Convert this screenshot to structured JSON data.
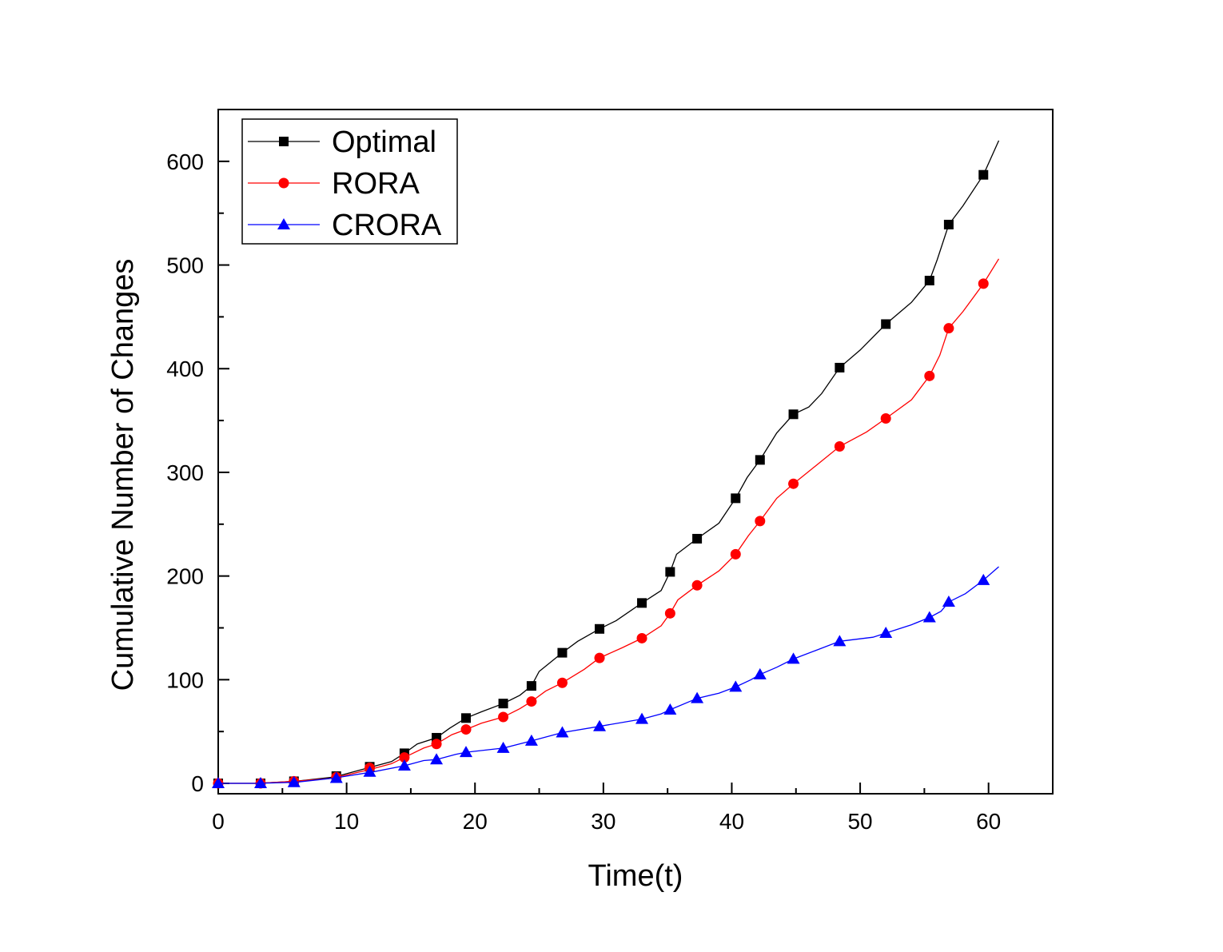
{
  "chart_data": {
    "type": "line",
    "xlabel": "Time(t)",
    "ylabel": "Cumulative Number of Changes",
    "xlim": [
      0,
      65
    ],
    "ylim": [
      -10,
      650
    ],
    "xticks": [
      0,
      10,
      20,
      30,
      40,
      50,
      60
    ],
    "yticks": [
      0,
      100,
      200,
      300,
      400,
      500,
      600
    ],
    "grid": false,
    "legend_position": "top-left",
    "series": [
      {
        "name": "Optimal",
        "color": "#000000",
        "marker": "square",
        "line": [
          [
            0,
            0
          ],
          [
            3,
            0
          ],
          [
            6,
            2
          ],
          [
            9,
            6
          ],
          [
            12,
            16
          ],
          [
            13.5,
            21
          ],
          [
            14.5,
            29
          ],
          [
            15.5,
            38
          ],
          [
            17,
            44
          ],
          [
            18,
            53
          ],
          [
            19.3,
            63
          ],
          [
            20.5,
            69
          ],
          [
            22.2,
            77
          ],
          [
            23.5,
            85
          ],
          [
            24.4,
            94
          ],
          [
            25,
            108
          ],
          [
            26.8,
            126
          ],
          [
            28,
            137
          ],
          [
            29.7,
            149
          ],
          [
            31,
            157
          ],
          [
            33,
            174
          ],
          [
            34.5,
            186
          ],
          [
            35.2,
            204
          ],
          [
            35.7,
            221
          ],
          [
            37.3,
            236
          ],
          [
            39,
            251
          ],
          [
            40.3,
            275
          ],
          [
            41.2,
            295
          ],
          [
            42.2,
            312
          ],
          [
            43.5,
            338
          ],
          [
            44.8,
            356
          ],
          [
            46,
            363
          ],
          [
            47,
            376
          ],
          [
            48.4,
            401
          ],
          [
            50,
            418
          ],
          [
            52,
            443
          ],
          [
            54,
            464
          ],
          [
            55.4,
            485
          ],
          [
            56,
            505
          ],
          [
            56.9,
            539
          ],
          [
            58,
            557
          ],
          [
            59.6,
            587
          ],
          [
            60.8,
            620
          ]
        ],
        "markers": [
          [
            0,
            0
          ],
          [
            3.3,
            0
          ],
          [
            5.9,
            2
          ],
          [
            9.2,
            7
          ],
          [
            11.8,
            16
          ],
          [
            14.5,
            29
          ],
          [
            17,
            44
          ],
          [
            19.3,
            63
          ],
          [
            22.2,
            77
          ],
          [
            24.4,
            94
          ],
          [
            26.8,
            126
          ],
          [
            29.7,
            149
          ],
          [
            33,
            174
          ],
          [
            35.2,
            204
          ],
          [
            37.3,
            236
          ],
          [
            40.3,
            275
          ],
          [
            42.2,
            312
          ],
          [
            44.8,
            356
          ],
          [
            48.4,
            401
          ],
          [
            52,
            443
          ],
          [
            55.4,
            485
          ],
          [
            56.9,
            539
          ],
          [
            59.6,
            587
          ]
        ]
      },
      {
        "name": "RORA",
        "color": "#ff0000",
        "marker": "circle",
        "line": [
          [
            0,
            0
          ],
          [
            3,
            0
          ],
          [
            6,
            2
          ],
          [
            9,
            5
          ],
          [
            12,
            14
          ],
          [
            13.5,
            19
          ],
          [
            14.5,
            25
          ],
          [
            16,
            34
          ],
          [
            17,
            38
          ],
          [
            18.2,
            47
          ],
          [
            19.3,
            52
          ],
          [
            20.5,
            58
          ],
          [
            22.2,
            64
          ],
          [
            23.5,
            72
          ],
          [
            24.4,
            79
          ],
          [
            25.5,
            89
          ],
          [
            26.8,
            97
          ],
          [
            28.5,
            110
          ],
          [
            29.7,
            121
          ],
          [
            31.5,
            131
          ],
          [
            33,
            140
          ],
          [
            34.5,
            152
          ],
          [
            35.2,
            164
          ],
          [
            35.8,
            177
          ],
          [
            37.3,
            191
          ],
          [
            39,
            205
          ],
          [
            40.3,
            221
          ],
          [
            41.3,
            239
          ],
          [
            42.2,
            253
          ],
          [
            43.5,
            275
          ],
          [
            44.8,
            289
          ],
          [
            46.5,
            306
          ],
          [
            48.4,
            325
          ],
          [
            50.5,
            339
          ],
          [
            52,
            352
          ],
          [
            54,
            370
          ],
          [
            55.4,
            393
          ],
          [
            56.2,
            413
          ],
          [
            56.9,
            439
          ],
          [
            58,
            455
          ],
          [
            59.6,
            482
          ],
          [
            60.8,
            506
          ]
        ],
        "markers": [
          [
            0,
            0
          ],
          [
            3.3,
            0
          ],
          [
            5.9,
            2
          ],
          [
            9.2,
            6
          ],
          [
            11.8,
            15
          ],
          [
            14.5,
            25
          ],
          [
            17,
            38
          ],
          [
            19.3,
            52
          ],
          [
            22.2,
            64
          ],
          [
            24.4,
            79
          ],
          [
            26.8,
            97
          ],
          [
            29.7,
            121
          ],
          [
            33,
            140
          ],
          [
            35.2,
            164
          ],
          [
            37.3,
            191
          ],
          [
            40.3,
            221
          ],
          [
            42.2,
            253
          ],
          [
            44.8,
            289
          ],
          [
            48.4,
            325
          ],
          [
            52,
            352
          ],
          [
            55.4,
            393
          ],
          [
            56.9,
            439
          ],
          [
            59.6,
            482
          ]
        ]
      },
      {
        "name": "CRORA",
        "color": "#0000ff",
        "marker": "triangle",
        "line": [
          [
            0,
            0
          ],
          [
            3,
            0
          ],
          [
            6,
            1
          ],
          [
            9,
            5
          ],
          [
            12,
            11
          ],
          [
            14.5,
            17
          ],
          [
            16,
            22
          ],
          [
            17,
            23
          ],
          [
            18.5,
            28
          ],
          [
            19.3,
            30
          ],
          [
            22.2,
            34
          ],
          [
            24.4,
            41
          ],
          [
            26.8,
            49
          ],
          [
            29.7,
            55
          ],
          [
            33,
            62
          ],
          [
            34.5,
            67
          ],
          [
            35.2,
            71
          ],
          [
            37.3,
            82
          ],
          [
            39,
            87
          ],
          [
            40.3,
            93
          ],
          [
            41.5,
            100
          ],
          [
            42.2,
            105
          ],
          [
            43.5,
            112
          ],
          [
            44.8,
            120
          ],
          [
            46.5,
            128
          ],
          [
            48.4,
            137
          ],
          [
            51,
            141
          ],
          [
            52,
            145
          ],
          [
            54,
            153
          ],
          [
            55.4,
            160
          ],
          [
            56.3,
            166
          ],
          [
            56.9,
            175
          ],
          [
            58.2,
            183
          ],
          [
            59.6,
            196
          ],
          [
            60.8,
            209
          ]
        ],
        "markers": [
          [
            0,
            0
          ],
          [
            3.3,
            0
          ],
          [
            5.9,
            1
          ],
          [
            9.2,
            5
          ],
          [
            11.8,
            11
          ],
          [
            14.5,
            17
          ],
          [
            17,
            23
          ],
          [
            19.3,
            30
          ],
          [
            22.2,
            34
          ],
          [
            24.4,
            41
          ],
          [
            26.8,
            49
          ],
          [
            29.7,
            55
          ],
          [
            33,
            62
          ],
          [
            35.2,
            71
          ],
          [
            37.3,
            82
          ],
          [
            40.3,
            93
          ],
          [
            42.2,
            105
          ],
          [
            44.8,
            120
          ],
          [
            48.4,
            137
          ],
          [
            52,
            145
          ],
          [
            55.4,
            160
          ],
          [
            56.9,
            175
          ],
          [
            59.6,
            196
          ]
        ]
      }
    ]
  }
}
